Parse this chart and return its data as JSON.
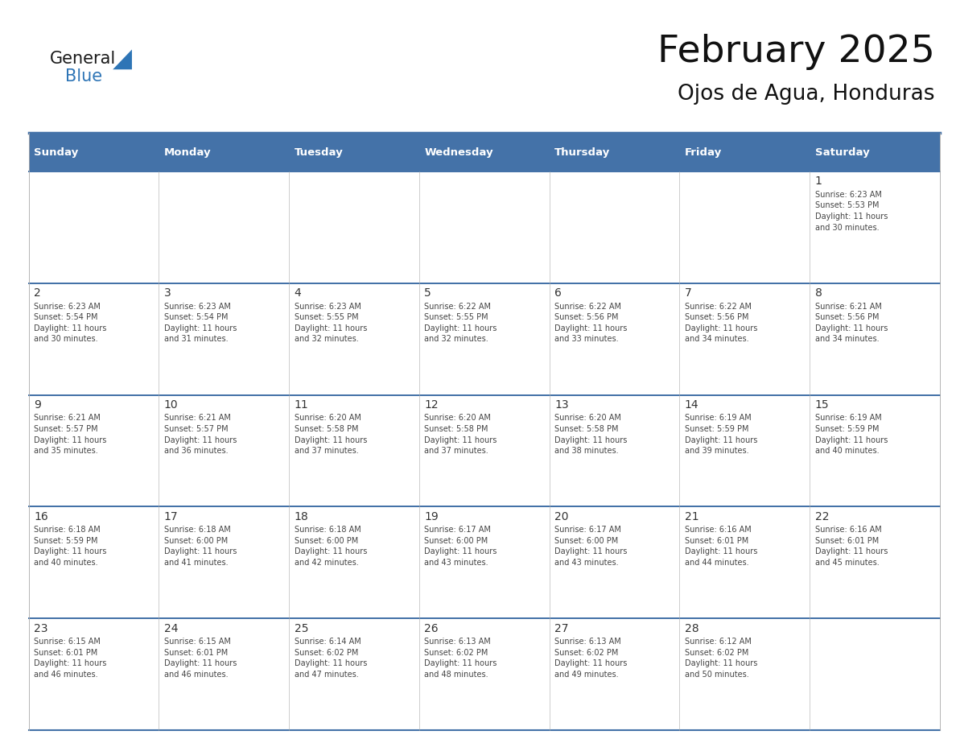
{
  "title": "February 2025",
  "subtitle": "Ojos de Agua, Honduras",
  "days_of_week": [
    "Sunday",
    "Monday",
    "Tuesday",
    "Wednesday",
    "Thursday",
    "Friday",
    "Saturday"
  ],
  "header_bg": "#4472A8",
  "header_text": "#FFFFFF",
  "cell_bg_light": "#F2F2F2",
  "cell_bg_white": "#FFFFFF",
  "divider_color": "#4472A8",
  "border_color": "#AAAAAA",
  "text_color": "#444444",
  "day_num_color": "#333333",
  "logo_general_color": "#1a1a1a",
  "logo_blue_color": "#2E75B6",
  "calendar_data": [
    [
      null,
      null,
      null,
      null,
      null,
      null,
      1
    ],
    [
      2,
      3,
      4,
      5,
      6,
      7,
      8
    ],
    [
      9,
      10,
      11,
      12,
      13,
      14,
      15
    ],
    [
      16,
      17,
      18,
      19,
      20,
      21,
      22
    ],
    [
      23,
      24,
      25,
      26,
      27,
      28,
      null
    ]
  ],
  "sun_set_rise": {
    "1": {
      "rise": "6:23 AM",
      "set": "5:53 PM",
      "hours": "11",
      "minutes": "30"
    },
    "2": {
      "rise": "6:23 AM",
      "set": "5:54 PM",
      "hours": "11",
      "minutes": "30"
    },
    "3": {
      "rise": "6:23 AM",
      "set": "5:54 PM",
      "hours": "11",
      "minutes": "31"
    },
    "4": {
      "rise": "6:23 AM",
      "set": "5:55 PM",
      "hours": "11",
      "minutes": "32"
    },
    "5": {
      "rise": "6:22 AM",
      "set": "5:55 PM",
      "hours": "11",
      "minutes": "32"
    },
    "6": {
      "rise": "6:22 AM",
      "set": "5:56 PM",
      "hours": "11",
      "minutes": "33"
    },
    "7": {
      "rise": "6:22 AM",
      "set": "5:56 PM",
      "hours": "11",
      "minutes": "34"
    },
    "8": {
      "rise": "6:21 AM",
      "set": "5:56 PM",
      "hours": "11",
      "minutes": "34"
    },
    "9": {
      "rise": "6:21 AM",
      "set": "5:57 PM",
      "hours": "11",
      "minutes": "35"
    },
    "10": {
      "rise": "6:21 AM",
      "set": "5:57 PM",
      "hours": "11",
      "minutes": "36"
    },
    "11": {
      "rise": "6:20 AM",
      "set": "5:58 PM",
      "hours": "11",
      "minutes": "37"
    },
    "12": {
      "rise": "6:20 AM",
      "set": "5:58 PM",
      "hours": "11",
      "minutes": "37"
    },
    "13": {
      "rise": "6:20 AM",
      "set": "5:58 PM",
      "hours": "11",
      "minutes": "38"
    },
    "14": {
      "rise": "6:19 AM",
      "set": "5:59 PM",
      "hours": "11",
      "minutes": "39"
    },
    "15": {
      "rise": "6:19 AM",
      "set": "5:59 PM",
      "hours": "11",
      "minutes": "40"
    },
    "16": {
      "rise": "6:18 AM",
      "set": "5:59 PM",
      "hours": "11",
      "minutes": "40"
    },
    "17": {
      "rise": "6:18 AM",
      "set": "6:00 PM",
      "hours": "11",
      "minutes": "41"
    },
    "18": {
      "rise": "6:18 AM",
      "set": "6:00 PM",
      "hours": "11",
      "minutes": "42"
    },
    "19": {
      "rise": "6:17 AM",
      "set": "6:00 PM",
      "hours": "11",
      "minutes": "43"
    },
    "20": {
      "rise": "6:17 AM",
      "set": "6:00 PM",
      "hours": "11",
      "minutes": "43"
    },
    "21": {
      "rise": "6:16 AM",
      "set": "6:01 PM",
      "hours": "11",
      "minutes": "44"
    },
    "22": {
      "rise": "6:16 AM",
      "set": "6:01 PM",
      "hours": "11",
      "minutes": "45"
    },
    "23": {
      "rise": "6:15 AM",
      "set": "6:01 PM",
      "hours": "11",
      "minutes": "46"
    },
    "24": {
      "rise": "6:15 AM",
      "set": "6:01 PM",
      "hours": "11",
      "minutes": "46"
    },
    "25": {
      "rise": "6:14 AM",
      "set": "6:02 PM",
      "hours": "11",
      "minutes": "47"
    },
    "26": {
      "rise": "6:13 AM",
      "set": "6:02 PM",
      "hours": "11",
      "minutes": "48"
    },
    "27": {
      "rise": "6:13 AM",
      "set": "6:02 PM",
      "hours": "11",
      "minutes": "49"
    },
    "28": {
      "rise": "6:12 AM",
      "set": "6:02 PM",
      "hours": "11",
      "minutes": "50"
    }
  }
}
